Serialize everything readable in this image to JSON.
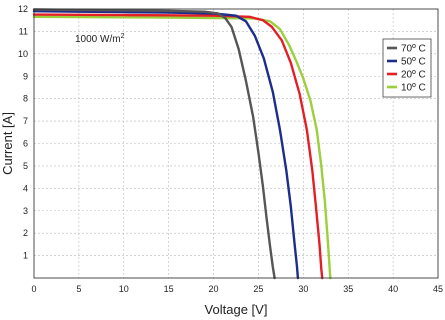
{
  "chart_data": {
    "type": "line",
    "title": "",
    "xlabel": "Voltage [V]",
    "ylabel": "Current [A]",
    "xlim": [
      0,
      45
    ],
    "ylim": [
      0,
      12
    ],
    "x_ticks": [
      0,
      5,
      10,
      15,
      20,
      25,
      30,
      35,
      40,
      45
    ],
    "y_ticks": [
      1,
      2,
      3,
      4,
      5,
      6,
      7,
      8,
      9,
      10,
      11,
      12
    ],
    "grid": true,
    "legend_position": "top-right",
    "annotation": {
      "text": "1000 W/m",
      "superscript": "2"
    },
    "series": [
      {
        "name": "70º C",
        "color": "#565656",
        "points": [
          [
            0,
            11.98
          ],
          [
            5,
            11.96
          ],
          [
            10,
            11.94
          ],
          [
            15,
            11.92
          ],
          [
            19,
            11.88
          ],
          [
            20.5,
            11.8
          ],
          [
            21.3,
            11.6
          ],
          [
            22,
            11.2
          ],
          [
            22.8,
            10.2
          ],
          [
            23.6,
            8.8
          ],
          [
            24.4,
            7.2
          ],
          [
            25,
            5.6
          ],
          [
            25.5,
            4.1
          ],
          [
            25.9,
            2.7
          ],
          [
            26.3,
            1.4
          ],
          [
            26.6,
            0.5
          ],
          [
            26.8,
            0
          ]
        ]
      },
      {
        "name": "50º C",
        "color": "#1d2d8c",
        "points": [
          [
            0,
            11.9
          ],
          [
            5,
            11.88
          ],
          [
            10,
            11.86
          ],
          [
            15,
            11.84
          ],
          [
            20,
            11.8
          ],
          [
            22.5,
            11.7
          ],
          [
            23.6,
            11.45
          ],
          [
            24.6,
            10.8
          ],
          [
            25.6,
            9.8
          ],
          [
            26.6,
            8.3
          ],
          [
            27.4,
            6.6
          ],
          [
            28.1,
            4.8
          ],
          [
            28.6,
            3.2
          ],
          [
            29,
            1.6
          ],
          [
            29.3,
            0.5
          ],
          [
            29.4,
            0
          ]
        ]
      },
      {
        "name": "20º C",
        "color": "#e41f26",
        "points": [
          [
            0,
            11.75
          ],
          [
            5,
            11.74
          ],
          [
            10,
            11.73
          ],
          [
            15,
            11.72
          ],
          [
            20,
            11.7
          ],
          [
            24,
            11.65
          ],
          [
            25.5,
            11.5
          ],
          [
            26.5,
            11.2
          ],
          [
            27.6,
            10.6
          ],
          [
            28.6,
            9.6
          ],
          [
            29.6,
            8.2
          ],
          [
            30.4,
            6.6
          ],
          [
            31,
            4.8
          ],
          [
            31.4,
            3.2
          ],
          [
            31.8,
            1.5
          ],
          [
            32,
            0.4
          ],
          [
            32.1,
            0
          ]
        ]
      },
      {
        "name": "10º C",
        "color": "#9ccf3c",
        "points": [
          [
            0,
            11.65
          ],
          [
            5,
            11.64
          ],
          [
            10,
            11.63
          ],
          [
            15,
            11.62
          ],
          [
            20,
            11.6
          ],
          [
            24.5,
            11.58
          ],
          [
            26.3,
            11.45
          ],
          [
            27.4,
            11.1
          ],
          [
            28.4,
            10.4
          ],
          [
            29.3,
            9.6
          ],
          [
            30,
            8.9
          ],
          [
            30.8,
            7.9
          ],
          [
            31.5,
            6.6
          ],
          [
            32,
            5
          ],
          [
            32.4,
            3.4
          ],
          [
            32.7,
            1.8
          ],
          [
            32.9,
            0.6
          ],
          [
            33,
            0
          ]
        ]
      }
    ]
  }
}
